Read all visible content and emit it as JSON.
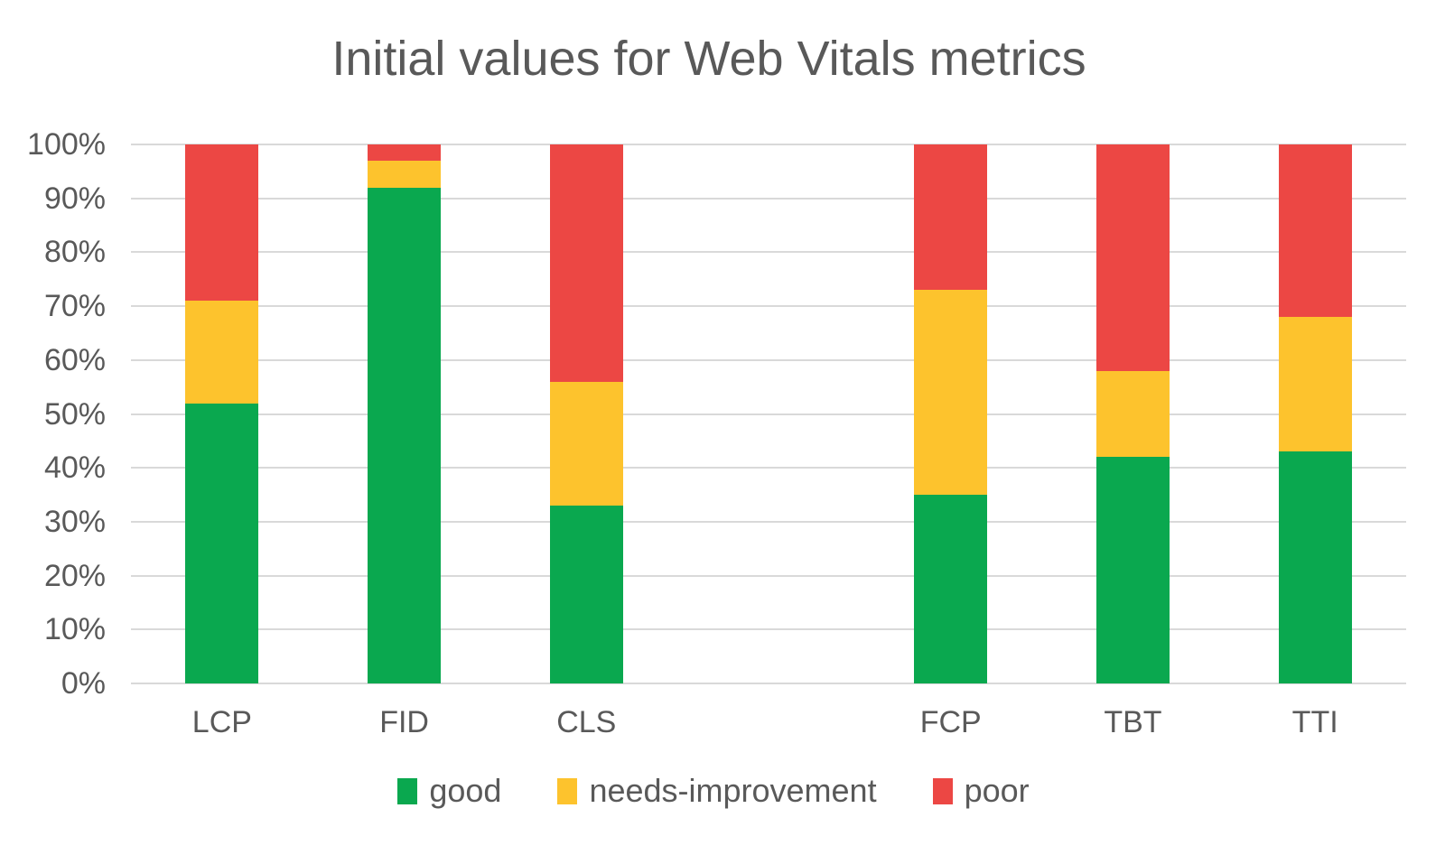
{
  "title": "Initial values for Web Vitals metrics",
  "colors": {
    "good": "#0aa84f",
    "needs_improvement": "#fdc32d",
    "poor": "#ec4744",
    "text": "#595959",
    "gridline": "#d9d9d9"
  },
  "chart_data": {
    "type": "bar",
    "stacked": true,
    "title": "Initial values for Web Vitals metrics",
    "xlabel": "",
    "ylabel": "",
    "ylim": [
      0,
      100
    ],
    "grid": true,
    "legend_position": "bottom",
    "y_ticks": [
      "0%",
      "10%",
      "20%",
      "30%",
      "40%",
      "50%",
      "60%",
      "70%",
      "80%",
      "90%",
      "100%"
    ],
    "categories": [
      "LCP",
      "FID",
      "CLS",
      "",
      "FCP",
      "TBT",
      "TTI"
    ],
    "series": [
      {
        "name": "good",
        "color": "#0aa84f",
        "values": [
          52,
          92,
          33,
          null,
          35,
          42,
          43
        ]
      },
      {
        "name": "needs-improvement",
        "color": "#fdc32d",
        "values": [
          19,
          5,
          23,
          null,
          38,
          16,
          25
        ]
      },
      {
        "name": "poor",
        "color": "#ec4744",
        "values": [
          29,
          3,
          44,
          null,
          27,
          42,
          32
        ]
      }
    ]
  }
}
